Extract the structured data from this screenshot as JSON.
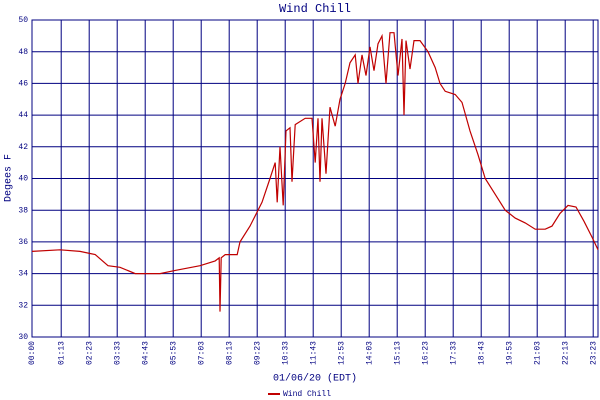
{
  "chart_data": {
    "type": "line",
    "title": "Wind Chill",
    "x_label": "01/06/20 (EDT)",
    "y_label": "Degees F",
    "x": [
      0,
      70,
      120,
      158,
      190,
      220,
      258,
      320,
      358,
      420,
      458,
      468,
      470,
      473,
      483,
      513,
      520,
      545,
      575,
      595,
      608,
      613,
      620,
      628,
      635,
      645,
      650,
      658,
      683,
      700,
      708,
      715,
      720,
      725,
      735,
      745,
      758,
      770,
      783,
      795,
      808,
      815,
      825,
      835,
      845,
      855,
      865,
      875,
      885,
      895,
      905,
      915,
      925,
      930,
      935,
      945,
      955,
      970,
      990,
      1008,
      1020,
      1033,
      1058,
      1075,
      1095,
      1115,
      1133,
      1158,
      1183,
      1208,
      1233,
      1258,
      1283,
      1300,
      1320,
      1340,
      1360,
      1380,
      1400,
      1415
    ],
    "series": [
      {
        "name": "Wind Chill",
        "color": "#c00000",
        "values": [
          35.4,
          35.5,
          35.4,
          35.2,
          34.5,
          34.4,
          34.0,
          34.0,
          34.2,
          34.5,
          34.8,
          35.0,
          31.6,
          35.0,
          35.2,
          35.2,
          36.0,
          37.0,
          38.5,
          40.0,
          41.0,
          38.5,
          42.0,
          38.3,
          43.0,
          43.2,
          39.8,
          43.4,
          43.8,
          43.8,
          41.0,
          43.8,
          39.8,
          43.8,
          40.3,
          44.5,
          43.3,
          45.0,
          46.0,
          47.3,
          47.8,
          46.0,
          47.8,
          46.5,
          48.3,
          46.8,
          48.5,
          49.0,
          46.0,
          49.2,
          49.2,
          46.5,
          48.8,
          44.0,
          48.7,
          46.9,
          48.7,
          48.7,
          48.0,
          47.0,
          46.0,
          45.5,
          45.3,
          44.8,
          43.0,
          41.5,
          40.0,
          39.0,
          38.0,
          37.5,
          37.2,
          36.8,
          36.8,
          37.0,
          37.8,
          38.3,
          38.2,
          37.3,
          36.3,
          35.5
        ]
      }
    ],
    "xlim": [
      0,
      1415
    ],
    "xticks": [
      {
        "value": 0,
        "label": "00:00"
      },
      {
        "value": 73,
        "label": "01:13"
      },
      {
        "value": 143,
        "label": "02:23"
      },
      {
        "value": 213,
        "label": "03:33"
      },
      {
        "value": 283,
        "label": "04:43"
      },
      {
        "value": 353,
        "label": "05:53"
      },
      {
        "value": 423,
        "label": "07:03"
      },
      {
        "value": 493,
        "label": "08:13"
      },
      {
        "value": 563,
        "label": "09:23"
      },
      {
        "value": 633,
        "label": "10:33"
      },
      {
        "value": 703,
        "label": "11:43"
      },
      {
        "value": 773,
        "label": "12:53"
      },
      {
        "value": 843,
        "label": "14:03"
      },
      {
        "value": 913,
        "label": "15:13"
      },
      {
        "value": 983,
        "label": "16:23"
      },
      {
        "value": 1053,
        "label": "17:33"
      },
      {
        "value": 1123,
        "label": "18:43"
      },
      {
        "value": 1193,
        "label": "19:53"
      },
      {
        "value": 1263,
        "label": "21:03"
      },
      {
        "value": 1333,
        "label": "22:13"
      },
      {
        "value": 1403,
        "label": "23:23"
      }
    ],
    "ylim": [
      30,
      50
    ],
    "yticks": [
      30,
      32,
      34,
      36,
      38,
      40,
      42,
      44,
      46,
      48,
      50
    ],
    "grid": true,
    "grid_color": "#000080"
  }
}
